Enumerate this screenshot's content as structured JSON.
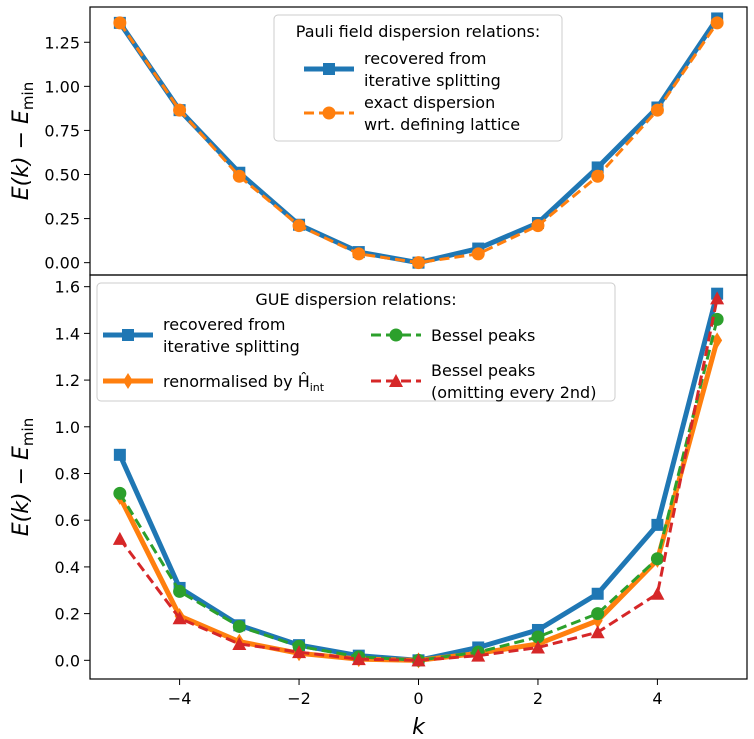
{
  "chart_data": [
    {
      "type": "line",
      "panel": "top",
      "ylabel": "E(k) − E_min",
      "xlabel": "",
      "xlim": [
        -5.5,
        5.5
      ],
      "ylim": [
        -0.07,
        1.45
      ],
      "y_ticks": [
        0.0,
        0.25,
        0.5,
        0.75,
        1.0,
        1.25
      ],
      "y_tick_labels": [
        "0.00",
        "0.25",
        "0.50",
        "0.75",
        "1.00",
        "1.25"
      ],
      "x": [
        -5,
        -4,
        -3,
        -2,
        -1,
        0,
        1,
        2,
        3,
        4,
        5
      ],
      "legend": {
        "title": "Pauli field dispersion relations:",
        "placement": "top-center"
      },
      "series": [
        {
          "name": "recovered from iterative splitting",
          "label_lines": [
            "recovered from",
            "iterative splitting"
          ],
          "color": "#1f77b4",
          "linestyle": "solid",
          "marker": "square",
          "values": [
            1.36,
            0.865,
            0.51,
            0.215,
            0.06,
            0.0,
            0.08,
            0.225,
            0.54,
            0.88,
            1.385
          ]
        },
        {
          "name": "exact dispersion wrt. defining lattice",
          "label_lines": [
            "exact dispersion",
            "wrt. defining lattice"
          ],
          "color": "#ff7f0e",
          "linestyle": "dashed",
          "marker": "circle",
          "values": [
            1.36,
            0.865,
            0.49,
            0.21,
            0.05,
            0.0,
            0.05,
            0.21,
            0.49,
            0.865,
            1.36
          ]
        }
      ]
    },
    {
      "type": "line",
      "panel": "bottom",
      "ylabel": "E(k) − E_min",
      "xlabel": "k",
      "xlim": [
        -5.5,
        5.5
      ],
      "ylim": [
        -0.08,
        1.65
      ],
      "x_ticks": [
        -4,
        -2,
        0,
        2,
        4
      ],
      "x_tick_labels": [
        "−4",
        "−2",
        "0",
        "2",
        "4"
      ],
      "y_ticks": [
        0.0,
        0.2,
        0.4,
        0.6,
        0.8,
        1.0,
        1.2,
        1.4,
        1.6
      ],
      "y_tick_labels": [
        "0.0",
        "0.2",
        "0.4",
        "0.6",
        "0.8",
        "1.0",
        "1.2",
        "1.4",
        "1.6"
      ],
      "x": [
        -5,
        -4,
        -3,
        -2,
        -1,
        0,
        1,
        2,
        3,
        4,
        5
      ],
      "legend": {
        "title": "GUE dispersion relations:",
        "placement": "top-left"
      },
      "series": [
        {
          "name": "recovered from iterative splitting",
          "label_lines": [
            "recovered from",
            "iterative splitting"
          ],
          "color": "#1f77b4",
          "linestyle": "solid",
          "marker": "square",
          "values": [
            0.88,
            0.31,
            0.15,
            0.065,
            0.02,
            0.0,
            0.055,
            0.13,
            0.285,
            0.58,
            1.57
          ]
        },
        {
          "name": "renormalised by Ĥ_int",
          "label_lines": [
            "renormalised by Ĥ"
          ],
          "label_sub": "int",
          "color": "#ff7f0e",
          "linestyle": "solid",
          "marker": "diamond",
          "values": [
            0.7,
            0.19,
            0.08,
            0.03,
            0.005,
            0.0,
            0.03,
            0.07,
            0.17,
            0.43,
            1.37
          ]
        },
        {
          "name": "Bessel peaks",
          "label_lines": [
            "Bessel peaks"
          ],
          "color": "#2ca02c",
          "linestyle": "dashed",
          "marker": "circle",
          "values": [
            0.715,
            0.295,
            0.145,
            0.06,
            0.015,
            0.0,
            0.035,
            0.1,
            0.2,
            0.435,
            1.46
          ]
        },
        {
          "name": "Bessel peaks (omitting every 2nd)",
          "label_lines": [
            "Bessel peaks",
            "(omitting every 2nd)"
          ],
          "color": "#d62728",
          "linestyle": "dashed",
          "marker": "triangle",
          "values": [
            0.52,
            0.18,
            0.07,
            0.035,
            0.005,
            0.0,
            0.02,
            0.055,
            0.12,
            0.285,
            1.55
          ]
        }
      ]
    }
  ]
}
